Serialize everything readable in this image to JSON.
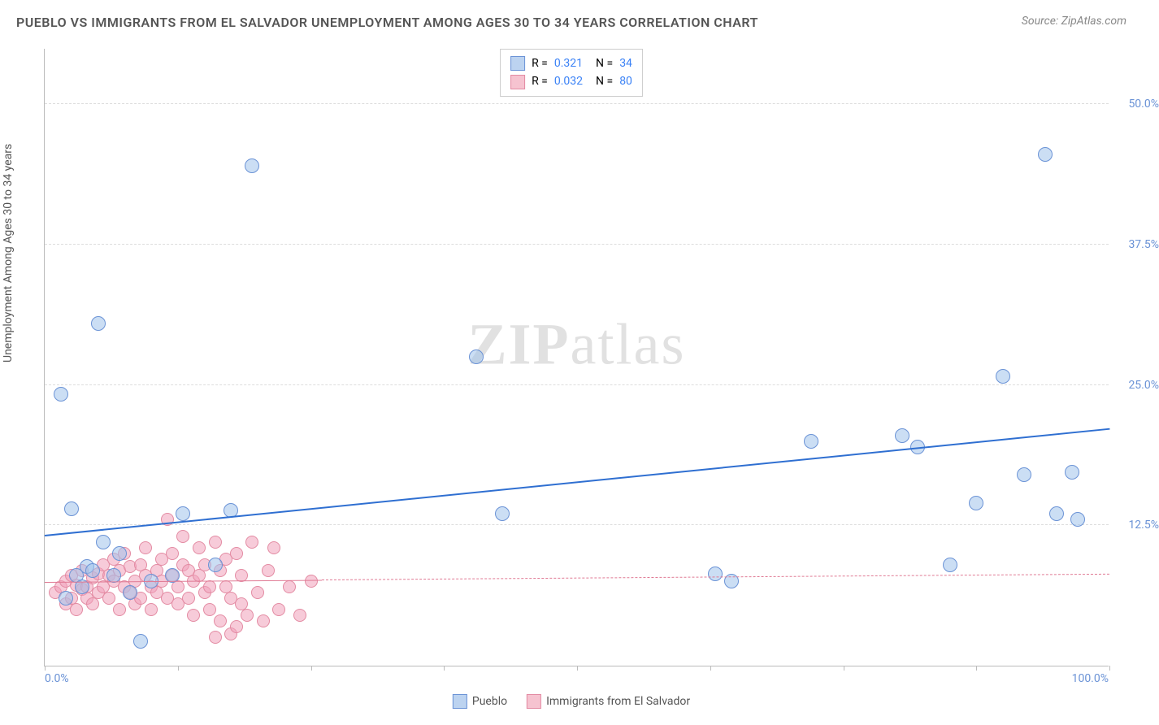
{
  "title": "PUEBLO VS IMMIGRANTS FROM EL SALVADOR UNEMPLOYMENT AMONG AGES 30 TO 34 YEARS CORRELATION CHART",
  "source": "Source: ZipAtlas.com",
  "watermark": {
    "bold": "ZIP",
    "rest": "atlas"
  },
  "y_axis": {
    "label": "Unemployment Among Ages 30 to 34 years",
    "min": 0.0,
    "max": 55.0,
    "ticks": [
      12.5,
      25.0,
      37.5,
      50.0
    ],
    "tick_labels": [
      "12.5%",
      "25.0%",
      "37.5%",
      "50.0%"
    ],
    "label_color": "#6b93d6",
    "label_fontsize": 14
  },
  "x_axis": {
    "min": 0.0,
    "max": 100.0,
    "ticks": [
      0,
      12.5,
      25,
      37.5,
      50,
      62.5,
      75,
      87.5,
      100
    ],
    "end_labels": {
      "left": "0.0%",
      "right": "100.0%"
    },
    "label_color": "#6b93d6"
  },
  "grid_color": "#dddddd",
  "background_color": "#ffffff",
  "legend_top": {
    "rows": [
      {
        "swatch_fill": "#bcd3f0",
        "swatch_border": "#6b93d6",
        "r_label": "R =",
        "r_value": "0.321",
        "n_label": "N =",
        "n_value": "34"
      },
      {
        "swatch_fill": "#f6c3d0",
        "swatch_border": "#e38ba3",
        "r_label": "R =",
        "r_value": "0.032",
        "n_label": "N =",
        "n_value": "80"
      }
    ],
    "r_label_color": "#555555",
    "value_color": "#3b82f6"
  },
  "legend_bottom": {
    "items": [
      {
        "swatch_fill": "#bcd3f0",
        "swatch_border": "#6b93d6",
        "label": "Pueblo"
      },
      {
        "swatch_fill": "#f6c3d0",
        "swatch_border": "#e38ba3",
        "label": "Immigrants from El Salvador"
      }
    ]
  },
  "series": [
    {
      "name": "Pueblo",
      "marker_fill": "rgba(160,195,235,0.55)",
      "marker_border": "#6b93d6",
      "marker_radius": 9,
      "trend": {
        "x1": 0,
        "y1": 11.5,
        "x2": 100,
        "y2": 21.0,
        "color": "#2f6fd1",
        "width": 2,
        "dash": "solid",
        "extent": 1.0
      },
      "points": [
        [
          1.5,
          24.2
        ],
        [
          5.0,
          30.5
        ],
        [
          19.5,
          44.5
        ],
        [
          40.5,
          27.5
        ],
        [
          2.5,
          14.0
        ],
        [
          5.5,
          11.0
        ],
        [
          4.0,
          8.8
        ],
        [
          3.0,
          8.0
        ],
        [
          9.0,
          2.2
        ],
        [
          13.0,
          13.5
        ],
        [
          16.0,
          9.0
        ],
        [
          17.5,
          13.8
        ],
        [
          63.0,
          8.2
        ],
        [
          64.5,
          7.5
        ],
        [
          72.0,
          20.0
        ],
        [
          82.0,
          19.5
        ],
        [
          80.5,
          20.5
        ],
        [
          85.0,
          9.0
        ],
        [
          87.5,
          14.5
        ],
        [
          90.0,
          25.8
        ],
        [
          92.0,
          17.0
        ],
        [
          95.0,
          13.5
        ],
        [
          96.5,
          17.2
        ],
        [
          97.0,
          13.0
        ],
        [
          94.0,
          45.5
        ],
        [
          3.5,
          7.0
        ],
        [
          6.5,
          8.0
        ],
        [
          8.0,
          6.5
        ],
        [
          10.0,
          7.5
        ],
        [
          2.0,
          6.0
        ],
        [
          4.5,
          8.5
        ],
        [
          7.0,
          10.0
        ],
        [
          12.0,
          8.0
        ],
        [
          43.0,
          13.5
        ]
      ]
    },
    {
      "name": "Immigrants from El Salvador",
      "marker_fill": "rgba(240,160,185,0.55)",
      "marker_border": "#e38ba3",
      "marker_radius": 8,
      "trend": {
        "x1": 0,
        "y1": 7.4,
        "x2": 100,
        "y2": 8.1,
        "color": "#e07a94",
        "width": 1.5,
        "dash": "dashed",
        "extent_solid": 0.26
      },
      "points": [
        [
          1.0,
          6.5
        ],
        [
          1.5,
          7.0
        ],
        [
          2.0,
          5.5
        ],
        [
          2.0,
          7.5
        ],
        [
          2.5,
          6.0
        ],
        [
          2.5,
          8.0
        ],
        [
          3.0,
          5.0
        ],
        [
          3.0,
          7.2
        ],
        [
          3.5,
          6.8
        ],
        [
          3.5,
          8.5
        ],
        [
          4.0,
          6.0
        ],
        [
          4.0,
          7.0
        ],
        [
          4.5,
          7.8
        ],
        [
          4.5,
          5.5
        ],
        [
          5.0,
          8.2
        ],
        [
          5.0,
          6.5
        ],
        [
          5.5,
          9.0
        ],
        [
          5.5,
          7.0
        ],
        [
          6.0,
          8.0
        ],
        [
          6.0,
          6.0
        ],
        [
          6.5,
          7.5
        ],
        [
          6.5,
          9.5
        ],
        [
          7.0,
          5.0
        ],
        [
          7.0,
          8.5
        ],
        [
          7.5,
          7.0
        ],
        [
          7.5,
          10.0
        ],
        [
          8.0,
          6.5
        ],
        [
          8.0,
          8.8
        ],
        [
          8.5,
          5.5
        ],
        [
          8.5,
          7.5
        ],
        [
          9.0,
          9.0
        ],
        [
          9.0,
          6.0
        ],
        [
          9.5,
          8.0
        ],
        [
          9.5,
          10.5
        ],
        [
          10.0,
          7.0
        ],
        [
          10.0,
          5.0
        ],
        [
          10.5,
          8.5
        ],
        [
          10.5,
          6.5
        ],
        [
          11.0,
          9.5
        ],
        [
          11.0,
          7.5
        ],
        [
          11.5,
          13.0
        ],
        [
          11.5,
          6.0
        ],
        [
          12.0,
          8.0
        ],
        [
          12.0,
          10.0
        ],
        [
          12.5,
          5.5
        ],
        [
          12.5,
          7.0
        ],
        [
          13.0,
          9.0
        ],
        [
          13.0,
          11.5
        ],
        [
          13.5,
          8.5
        ],
        [
          13.5,
          6.0
        ],
        [
          14.0,
          4.5
        ],
        [
          14.0,
          7.5
        ],
        [
          14.5,
          10.5
        ],
        [
          14.5,
          8.0
        ],
        [
          15.0,
          6.5
        ],
        [
          15.0,
          9.0
        ],
        [
          15.5,
          5.0
        ],
        [
          15.5,
          7.0
        ],
        [
          16.0,
          11.0
        ],
        [
          16.0,
          2.5
        ],
        [
          16.5,
          8.5
        ],
        [
          16.5,
          4.0
        ],
        [
          17.0,
          7.0
        ],
        [
          17.0,
          9.5
        ],
        [
          17.5,
          2.8
        ],
        [
          17.5,
          6.0
        ],
        [
          18.0,
          10.0
        ],
        [
          18.0,
          3.5
        ],
        [
          18.5,
          5.5
        ],
        [
          18.5,
          8.0
        ],
        [
          19.0,
          4.5
        ],
        [
          19.5,
          11.0
        ],
        [
          20.0,
          6.5
        ],
        [
          20.5,
          4.0
        ],
        [
          21.0,
          8.5
        ],
        [
          21.5,
          10.5
        ],
        [
          22.0,
          5.0
        ],
        [
          23.0,
          7.0
        ],
        [
          24.0,
          4.5
        ],
        [
          25.0,
          7.5
        ]
      ]
    }
  ]
}
